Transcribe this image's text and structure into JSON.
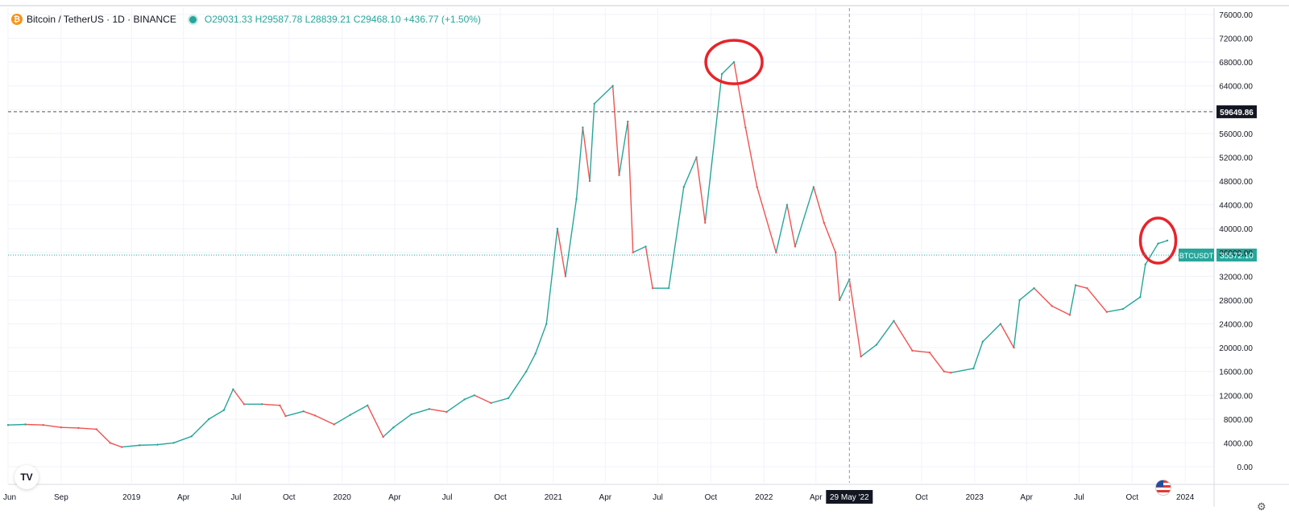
{
  "legend": {
    "symbol": "Bitcoin / TetherUS · 1D · BINANCE",
    "open": "29031.33",
    "high": "29587.78",
    "low": "28839.21",
    "close": "29468.10",
    "change": "+436.77 (+1.50%)",
    "open_label": "O",
    "high_label": "H",
    "low_label": "L",
    "close_label": "C"
  },
  "crosshair": {
    "price_label": "59649.86",
    "date_label": "29 May '22"
  },
  "last_price": {
    "symbol": "BTCUSDT",
    "price_label": "35572.10"
  },
  "colors": {
    "up": "#26a69a",
    "down": "#ef5350",
    "grid": "#f0f3fa",
    "annotation": "#e8232a"
  },
  "chart_data": {
    "type": "line",
    "title": "Bitcoin / TetherUS · 1D · BINANCE",
    "xlabel": "",
    "ylabel": "",
    "x_ticks": [
      "Jun",
      "Sep",
      "2019",
      "Apr",
      "Jul",
      "Oct",
      "2020",
      "Apr",
      "Jul",
      "Oct",
      "2021",
      "Apr",
      "Jul",
      "Oct",
      "2022",
      "Apr",
      "Oct",
      "2023",
      "Apr",
      "Jul",
      "Oct",
      "2024"
    ],
    "y_ticks": [
      0,
      4000,
      8000,
      12000,
      16000,
      20000,
      24000,
      28000,
      32000,
      36000,
      40000,
      44000,
      48000,
      52000,
      56000,
      60000,
      64000,
      68000,
      72000,
      76000
    ],
    "ylim": [
      0,
      76000
    ],
    "xlim": [
      "2018-06-01",
      "2024-02-20"
    ],
    "grid": true,
    "series": [
      {
        "name": "BTCUSDT",
        "x": [
          "2018-06-01",
          "2018-07-01",
          "2018-08-01",
          "2018-09-01",
          "2018-10-01",
          "2018-11-01",
          "2018-11-25",
          "2018-12-15",
          "2019-01-15",
          "2019-02-15",
          "2019-03-15",
          "2019-04-15",
          "2019-05-15",
          "2019-06-10",
          "2019-06-26",
          "2019-07-15",
          "2019-08-15",
          "2019-09-15",
          "2019-09-25",
          "2019-10-26",
          "2019-11-15",
          "2019-12-18",
          "2020-01-15",
          "2020-02-14",
          "2020-03-12",
          "2020-03-30",
          "2020-04-30",
          "2020-05-31",
          "2020-06-30",
          "2020-07-31",
          "2020-08-17",
          "2020-09-15",
          "2020-10-15",
          "2020-11-15",
          "2020-12-01",
          "2020-12-20",
          "2021-01-08",
          "2021-01-22",
          "2021-02-10",
          "2021-02-21",
          "2021-03-05",
          "2021-03-13",
          "2021-04-14",
          "2021-04-25",
          "2021-05-10",
          "2021-05-19",
          "2021-06-10",
          "2021-06-22",
          "2021-07-20",
          "2021-08-15",
          "2021-09-06",
          "2021-09-21",
          "2021-10-20",
          "2021-11-10",
          "2021-11-30",
          "2021-12-20",
          "2022-01-22",
          "2022-02-10",
          "2022-02-24",
          "2022-03-28",
          "2022-04-15",
          "2022-05-05",
          "2022-05-12",
          "2022-05-29",
          "2022-06-18",
          "2022-07-15",
          "2022-08-14",
          "2022-09-15",
          "2022-10-15",
          "2022-11-09",
          "2022-11-21",
          "2022-12-30",
          "2023-01-15",
          "2023-02-15",
          "2023-03-10",
          "2023-03-20",
          "2023-04-14",
          "2023-05-15",
          "2023-06-15",
          "2023-06-25",
          "2023-07-15",
          "2023-08-18",
          "2023-09-15",
          "2023-10-15",
          "2023-10-24",
          "2023-11-15",
          "2023-12-01"
        ],
        "y": [
          7000,
          7100,
          7000,
          6600,
          6500,
          6300,
          4000,
          3300,
          3600,
          3700,
          4000,
          5100,
          8000,
          9500,
          13000,
          10500,
          10500,
          10300,
          8500,
          9300,
          8600,
          7100,
          8700,
          10300,
          5000,
          6600,
          8800,
          9700,
          9200,
          11300,
          12000,
          10700,
          11500,
          16000,
          19000,
          24000,
          40000,
          32000,
          45000,
          57000,
          48000,
          61000,
          64000,
          49000,
          58000,
          36000,
          37000,
          30000,
          30000,
          47000,
          52000,
          41000,
          66000,
          68000,
          57000,
          47000,
          36000,
          44000,
          37000,
          47000,
          41000,
          36000,
          28000,
          31500,
          18500,
          20500,
          24500,
          19500,
          19200,
          16000,
          15800,
          16500,
          21000,
          24000,
          20000,
          28000,
          30000,
          27000,
          25500,
          30500,
          30000,
          26000,
          26500,
          28500,
          34000,
          37500,
          38000
        ]
      }
    ],
    "annotations": [
      {
        "type": "circle",
        "x": "2021-11-10",
        "y": 68000,
        "label": ""
      },
      {
        "type": "circle",
        "x": "2023-11-15",
        "y": 38000,
        "label": ""
      }
    ]
  }
}
